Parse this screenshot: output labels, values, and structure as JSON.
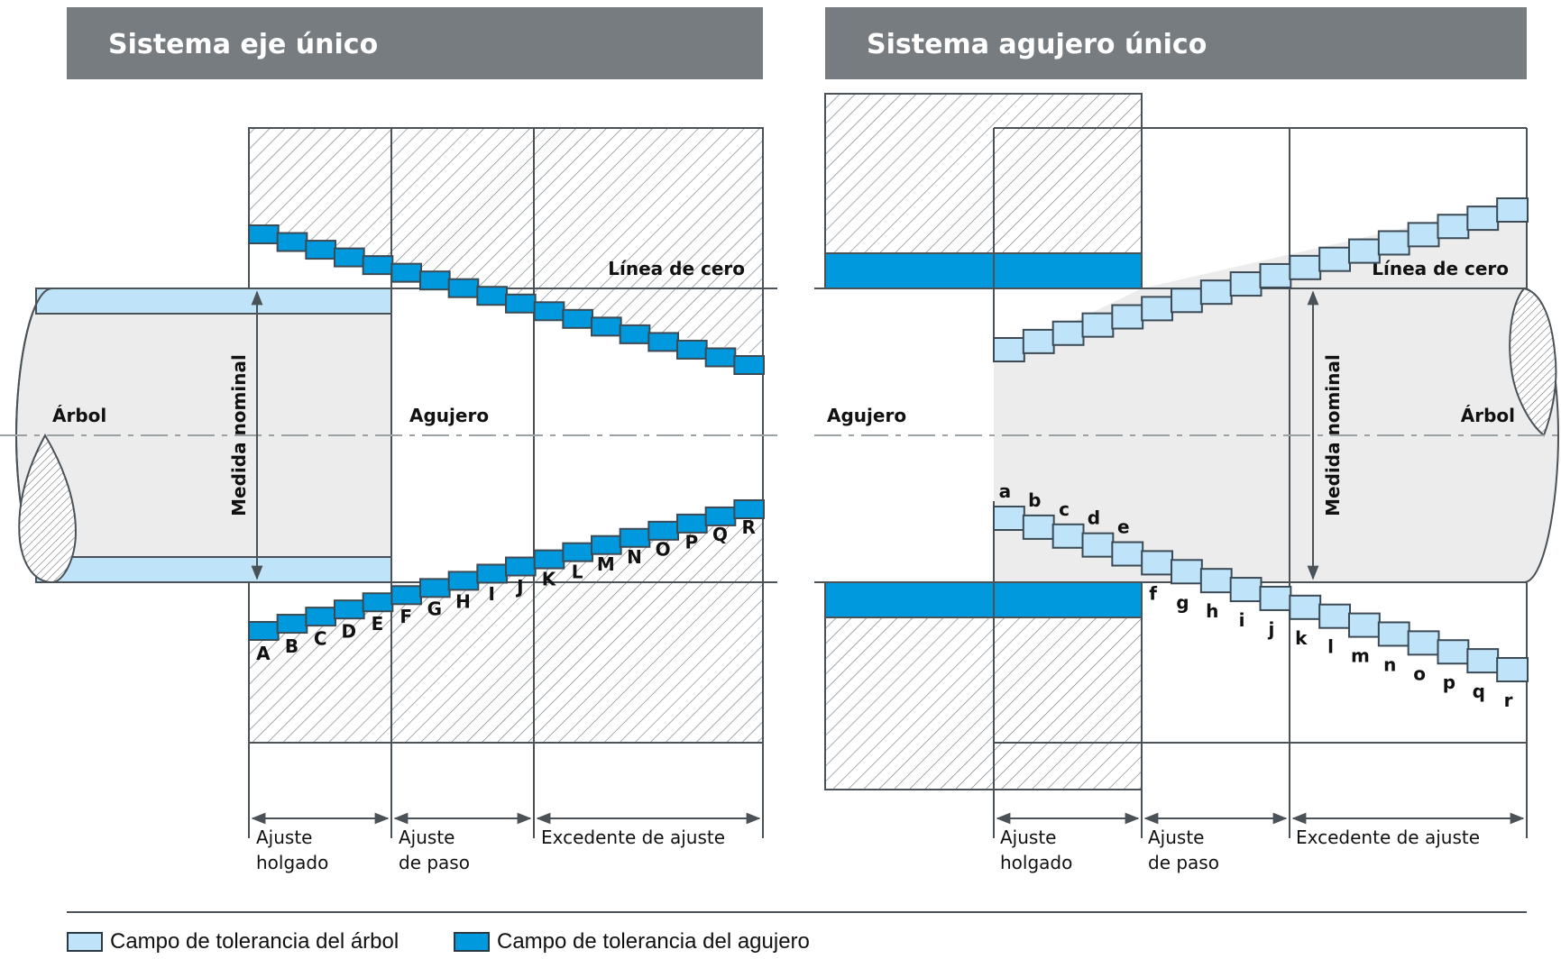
{
  "panels": {
    "left": {
      "title": "Sistema eje único",
      "zero_line_label": "Línea de cero",
      "shaft_label": "Árbol",
      "hole_label": "Agujero",
      "dimension_label": "Medida nominal",
      "letters": [
        "A",
        "B",
        "C",
        "D",
        "E",
        "F",
        "G",
        "H",
        "I",
        "J",
        "K",
        "L",
        "M",
        "N",
        "O",
        "P",
        "Q",
        "R"
      ],
      "groups": [
        {
          "line1": "Ajuste",
          "line2": "holgado"
        },
        {
          "line1": "Ajuste",
          "line2": "de paso"
        },
        {
          "line1": "Excedente de ajuste",
          "line2": ""
        }
      ]
    },
    "right": {
      "title": "Sistema agujero único",
      "zero_line_label": "Línea de cero",
      "shaft_label": "Árbol",
      "hole_label": "Agujero",
      "dimension_label": "Medida nominal",
      "letters": [
        "a",
        "b",
        "c",
        "d",
        "e",
        "f",
        "g",
        "h",
        "i",
        "j",
        "k",
        "l",
        "m",
        "n",
        "o",
        "p",
        "q",
        "r"
      ],
      "groups": [
        {
          "line1": "Ajuste",
          "line2": "holgado"
        },
        {
          "line1": "Ajuste",
          "line2": "de paso"
        },
        {
          "line1": "Excedente de ajuste",
          "line2": ""
        }
      ]
    }
  },
  "legend": {
    "shaft_tolerance": "Campo de tolerancia del árbol",
    "hole_tolerance": "Campo de tolerancia del agujero"
  },
  "colors": {
    "header_bg": "#777c80",
    "shaft_tolerance": "#bfe3f8",
    "hole_tolerance": "#0099dd",
    "body_fill": "#ececec",
    "outline": "#4a5258"
  }
}
